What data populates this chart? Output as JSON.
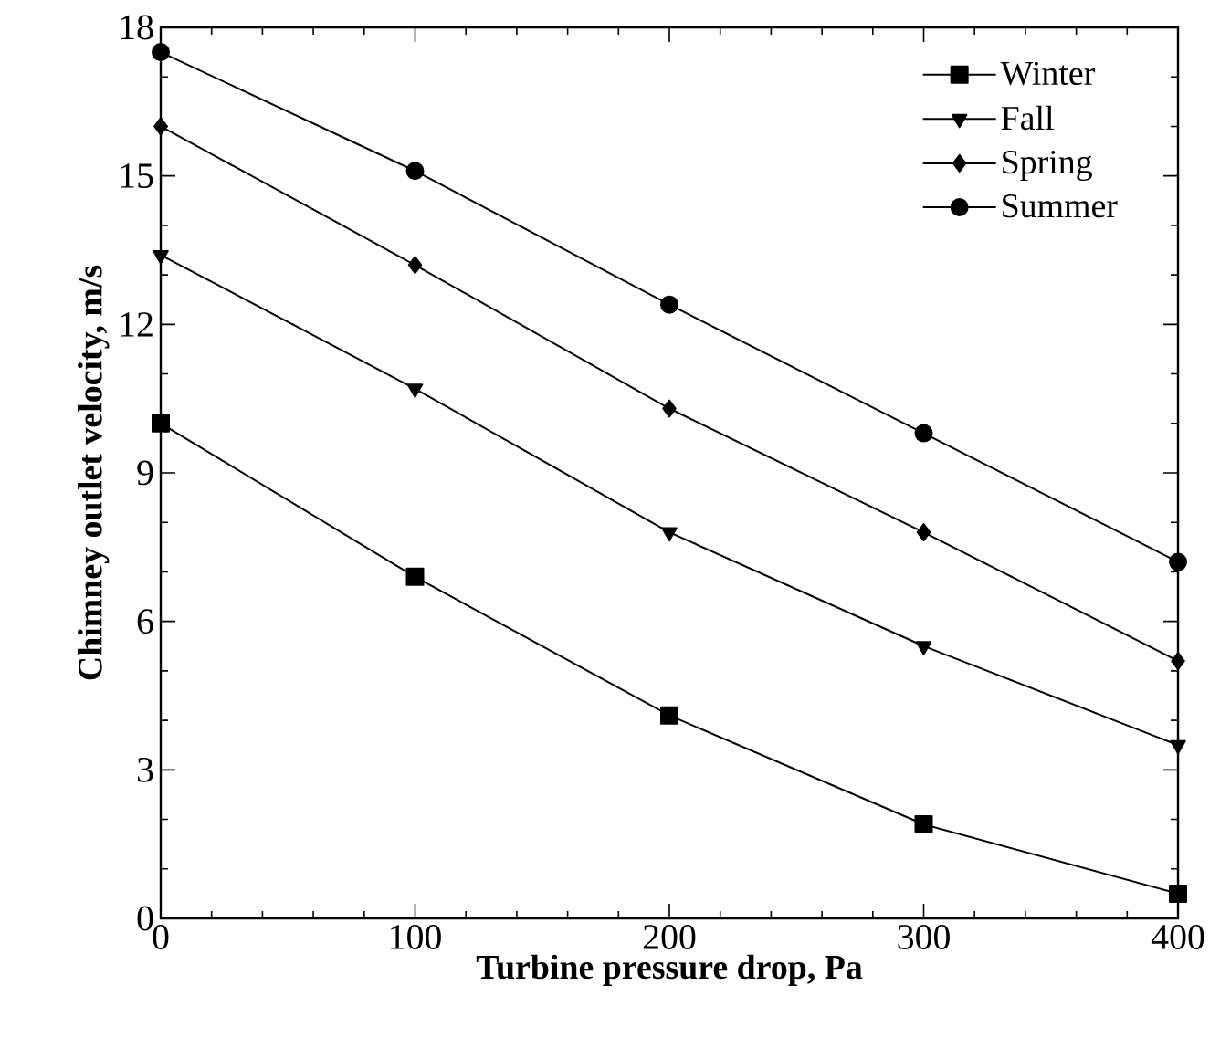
{
  "chart_data": {
    "type": "line",
    "xlabel": "Turbine pressure drop, Pa",
    "ylabel": "Chimney outlet velocity, m/s",
    "x": [
      0,
      100,
      200,
      300,
      400
    ],
    "series": [
      {
        "name": "Winter",
        "color": "#000000",
        "marker": "square",
        "values": [
          10.0,
          6.9,
          4.1,
          1.9,
          0.5
        ]
      },
      {
        "name": "Fall",
        "color": "#000000",
        "marker": "triangle",
        "values": [
          13.4,
          10.7,
          7.8,
          5.5,
          3.5
        ]
      },
      {
        "name": "Spring",
        "color": "#000000",
        "marker": "diamond",
        "values": [
          16.0,
          13.2,
          10.3,
          7.8,
          5.2
        ]
      },
      {
        "name": "Summer",
        "color": "#000000",
        "marker": "circle",
        "values": [
          17.5,
          15.1,
          12.4,
          9.8,
          7.2
        ]
      }
    ],
    "xlim": [
      0,
      400
    ],
    "xticks": [
      0,
      100,
      200,
      300,
      400
    ],
    "ylim": [
      0,
      18
    ],
    "yticks": [
      0,
      3,
      6,
      9,
      12,
      15,
      18
    ],
    "grid": false,
    "legend": "top right",
    "line_style": "solid"
  }
}
